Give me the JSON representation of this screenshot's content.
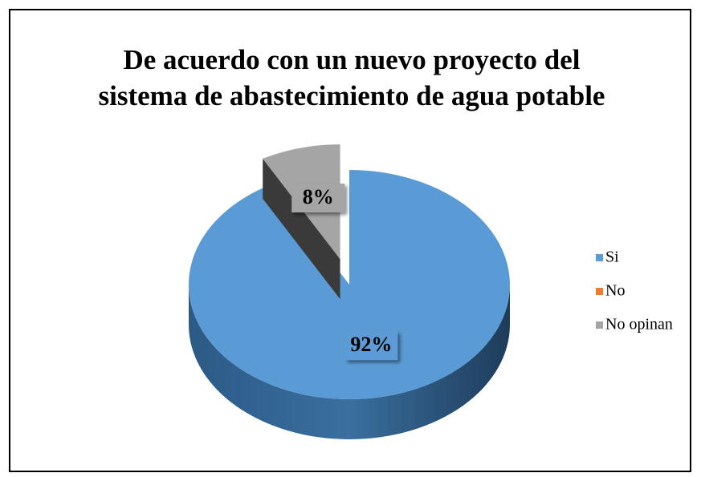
{
  "chart_data": {
    "type": "pie",
    "title": [
      "De acuerdo con un nuevo proyecto del",
      "sistema de abastecimiento de agua potable"
    ],
    "categories": [
      "Si",
      "No",
      "No opinan"
    ],
    "values": [
      92,
      0,
      8
    ],
    "value_labels": [
      "92%",
      null,
      "8%"
    ],
    "colors": [
      "#5b9bd5",
      "#ed7d31",
      "#a5a5a5"
    ],
    "legend": "right"
  }
}
